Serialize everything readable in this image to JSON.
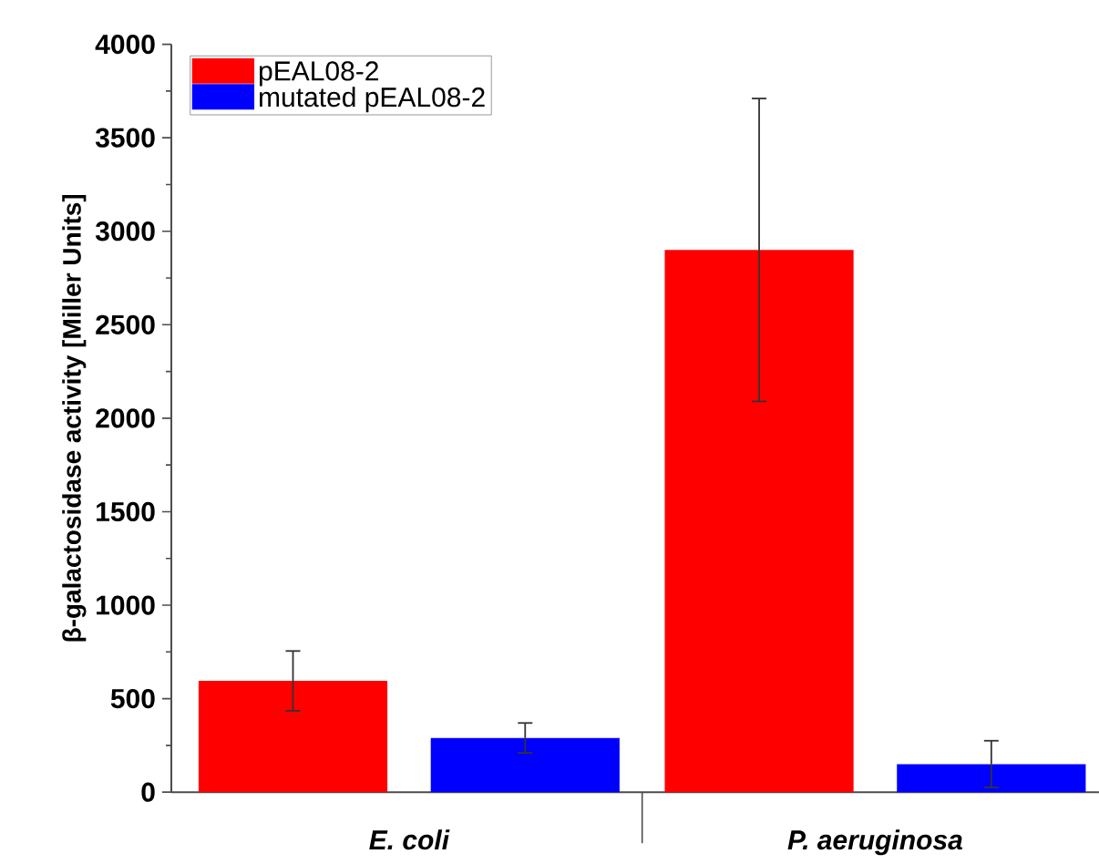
{
  "chart_data": {
    "type": "bar",
    "ylabel": "β-galactosidase activity [Miller Units]",
    "categories": [
      "E. coli",
      "P. aeruginosa"
    ],
    "series": [
      {
        "name": "pEAL08-2",
        "color": "#ff0000",
        "values": [
          595,
          2900
        ],
        "errors": [
          160,
          810
        ]
      },
      {
        "name": "mutated pEAL08-2",
        "color": "#0000ff",
        "values": [
          290,
          150
        ],
        "errors": [
          80,
          125
        ]
      }
    ],
    "ylim": [
      0,
      4000
    ],
    "yticks": [
      0,
      500,
      1000,
      1500,
      2000,
      2500,
      3000,
      3500,
      4000
    ],
    "grid": false,
    "legend": "top left"
  }
}
